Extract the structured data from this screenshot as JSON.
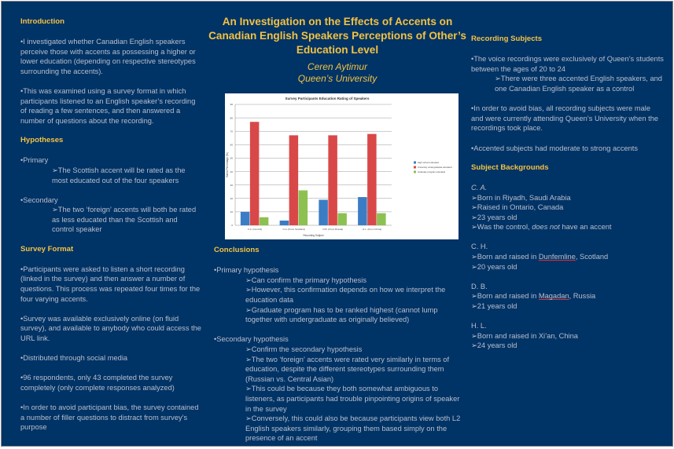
{
  "title": "An Investigation on the Effects of Accents on Canadian English Speakers Perceptions of Other’s Education Level",
  "author": "Ceren Aytimur",
  "affiliation": "Queen’s University",
  "colors": {
    "background": "#003366",
    "heading": "#f3c242",
    "text": "#b9bfcc"
  },
  "left": [
    {
      "t": "h",
      "text": "Introduction"
    },
    {
      "t": "gap"
    },
    {
      "t": "p",
      "text": "•I investigated whether Canadian English speakers perceive those with accents as possessing a higher or lower education (depending on respective stereotypes surrounding the accents)."
    },
    {
      "t": "gap"
    },
    {
      "t": "p",
      "text": "•This was examined using a survey format in which participants listened to an English speaker’s recording of reading a few sentences, and then answered a number of questions about the recording."
    },
    {
      "t": "gap"
    },
    {
      "t": "h",
      "text": "Hypotheses"
    },
    {
      "t": "gap"
    },
    {
      "t": "p",
      "text": "•Primary"
    },
    {
      "t": "sub",
      "text": "➢The Scottish accent will be rated as the most educated out of the four speakers"
    },
    {
      "t": "gap"
    },
    {
      "t": "p",
      "text": "•Secondary"
    },
    {
      "t": "sub",
      "text": "➢The two ‘foreign’ accents will both be rated as less educated than the Scottish and control speaker"
    },
    {
      "t": "gap"
    },
    {
      "t": "h",
      "text": "Survey Format"
    },
    {
      "t": "gap"
    },
    {
      "t": "p",
      "text": "•Participants were asked to listen a short recording (linked in the survey) and  then answer a number of questions. This process was repeated four times for the four varying accents."
    },
    {
      "t": "gap"
    },
    {
      "t": "p",
      "text": "•Survey was available exclusively online (on fluid survey), and available to anybody who could access the URL link."
    },
    {
      "t": "gap"
    },
    {
      "t": "p",
      "text": "•Distributed through social media"
    },
    {
      "t": "gap"
    },
    {
      "t": "p",
      "text": "•96 respondents, only 43 completed the survey completely  (only complete responses analyzed)"
    },
    {
      "t": "gap"
    },
    {
      "t": "p",
      "text": "•In order to avoid participant bias, the survey contained a number of filler questions to distract from survey’s purpose"
    }
  ],
  "center": [
    {
      "t": "h",
      "text": "Conclusions"
    },
    {
      "t": "gap"
    },
    {
      "t": "p",
      "text": "•Primary hypothesis"
    },
    {
      "t": "sub",
      "text": "➢Can confirm the primary hypothesis"
    },
    {
      "t": "sub",
      "text": "➢However, this confirmation depends on how we interpret  the education data"
    },
    {
      "t": "sub",
      "text": "➢Graduate program has to be ranked highest (cannot lump together with undergraduate as originally believed)"
    },
    {
      "t": "gap"
    },
    {
      "t": "p",
      "text": "•Secondary hypothesis"
    },
    {
      "t": "sub",
      "text": "➢Confirm the secondary hypothesis"
    },
    {
      "t": "sub",
      "text": "➢The two ‘foreign’ accents were rated very similarly in terms of education, despite the different stereotypes surrounding them (Russian vs. Central Asian)"
    },
    {
      "t": "sub",
      "text": "➢This could be because they both somewhat ambiguous to listeners, as participants had trouble pinpointing origins of speaker in the survey"
    },
    {
      "t": "sub",
      "text": "➢Conversely, this could also be because participants view both L2 English speakers similarly, grouping them based simply on the presence of an accent"
    }
  ],
  "right": [
    {
      "t": "h",
      "text": "Recording Subjects"
    },
    {
      "t": "gap"
    },
    {
      "t": "p",
      "text": "•The voice recordings were exclusively of Queen’s students between the ages of 20 to 24"
    },
    {
      "t": "sub2",
      "text": "➢There were three accented English speakers, and one Canadian English speaker as a control"
    },
    {
      "t": "gap"
    },
    {
      "t": "p",
      "text": "•In order to avoid bias, all recording subjects were male and were currently attending Queen’s University when the recordings took place."
    },
    {
      "t": "gap"
    },
    {
      "t": "p",
      "text": "•Accented subjects had moderate to strong accents"
    },
    {
      "t": "gap"
    },
    {
      "t": "h",
      "text": "Subject Backgrounds"
    },
    {
      "t": "gap"
    },
    {
      "t": "p",
      "text": "C. A.",
      "style": "it"
    },
    {
      "t": "p",
      "text": "➢Born in Riyadh, Saudi Arabia"
    },
    {
      "t": "p",
      "text": "➢Raised in Ontario, Canada"
    },
    {
      "t": "p",
      "text": "➢23 years old"
    },
    {
      "t": "p",
      "parts": [
        {
          "text": "➢Was the control, "
        },
        {
          "text": "does not",
          "style": "it"
        },
        {
          "text": " have an accent"
        }
      ]
    },
    {
      "t": "gap"
    },
    {
      "t": "p",
      "text": "C. H."
    },
    {
      "t": "p",
      "parts": [
        {
          "text": "➢Born and raised in "
        },
        {
          "text": "Dunfemline",
          "style": "ul"
        },
        {
          "text": ", Scotland"
        }
      ]
    },
    {
      "t": "p",
      "text": "➢20 years old"
    },
    {
      "t": "gap"
    },
    {
      "t": "p",
      "text": "D. B."
    },
    {
      "t": "p",
      "parts": [
        {
          "text": "➢Born and raised in "
        },
        {
          "text": "Magadan",
          "style": "ul"
        },
        {
          "text": ", Russia"
        }
      ]
    },
    {
      "t": "p",
      "text": "➢21 years old"
    },
    {
      "t": "gap"
    },
    {
      "t": "p",
      "text": "H. L."
    },
    {
      "t": "p",
      "text": "➢Born and raised in Xi’an, China"
    },
    {
      "t": "p",
      "text": "➢24 years old"
    }
  ],
  "chart_data": {
    "type": "bar",
    "title": "Survey Participants Education Rating of Speakers",
    "xlabel": "Recording Subject",
    "ylabel": "Rated Percentage (%)",
    "ylim": [
      0,
      90
    ],
    "yticks": [
      0,
      10,
      20,
      30,
      40,
      50,
      60,
      70,
      80,
      90
    ],
    "grid": true,
    "legend": "right",
    "categories": [
      "C.A. (Control)",
      "C.H. (From Scotland)",
      "D.B. (From Russia)",
      "H.L. (From China)"
    ],
    "series": [
      {
        "name": "High school educated",
        "color": "#3b7dc4",
        "values": [
          10,
          3.5,
          19,
          21
        ]
      },
      {
        "name": "University undergraduate educated",
        "color": "#d94848",
        "values": [
          77,
          67,
          67,
          68
        ]
      },
      {
        "name": "Graduate program educated",
        "color": "#8cc152",
        "values": [
          6,
          26,
          9,
          9
        ]
      }
    ]
  }
}
